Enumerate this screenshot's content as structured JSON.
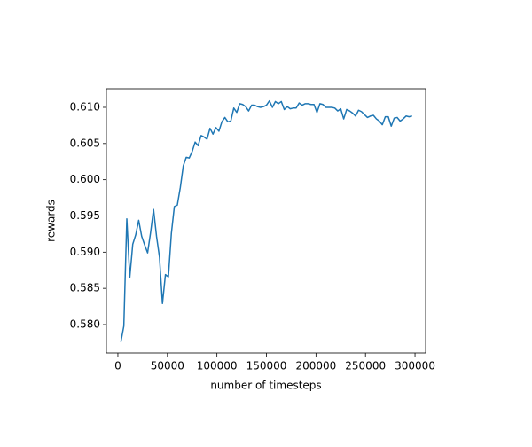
{
  "chart_data": {
    "type": "line",
    "xlabel": "number of timesteps",
    "ylabel": "rewards",
    "x": [
      3000,
      6000,
      9000,
      12000,
      15000,
      18000,
      21000,
      24000,
      27000,
      30000,
      33000,
      36000,
      39000,
      42000,
      45000,
      48000,
      51000,
      54000,
      57000,
      60000,
      63000,
      66000,
      69000,
      72000,
      75000,
      78000,
      81000,
      84000,
      87000,
      90000,
      93000,
      96000,
      99000,
      102000,
      105000,
      108000,
      111000,
      114000,
      117000,
      120000,
      123000,
      126000,
      129000,
      132000,
      135000,
      138000,
      141000,
      144000,
      147000,
      150000,
      153000,
      156000,
      159000,
      162000,
      165000,
      168000,
      171000,
      174000,
      177000,
      180000,
      183000,
      186000,
      189000,
      192000,
      195000,
      198000,
      201000,
      204000,
      207000,
      210000,
      213000,
      216000,
      219000,
      222000,
      225000,
      228000,
      231000,
      234000,
      237000,
      240000,
      243000,
      246000,
      249000,
      252000,
      255000,
      258000,
      261000,
      264000,
      267000,
      270000,
      273000,
      276000,
      279000,
      282000,
      285000,
      288000,
      291000,
      294000,
      297000
    ],
    "series": [
      {
        "color": "#1f77b4",
        "values": [
          0.5776,
          0.5798,
          0.5946,
          0.5865,
          0.5911,
          0.5924,
          0.5944,
          0.5922,
          0.591,
          0.5899,
          0.5927,
          0.5959,
          0.5922,
          0.5893,
          0.5829,
          0.5869,
          0.5866,
          0.5926,
          0.5963,
          0.5965,
          0.5989,
          0.6019,
          0.6031,
          0.603,
          0.6039,
          0.6052,
          0.6047,
          0.6061,
          0.6059,
          0.6056,
          0.6071,
          0.6063,
          0.6072,
          0.6067,
          0.608,
          0.6086,
          0.608,
          0.6081,
          0.6099,
          0.6093,
          0.6105,
          0.6104,
          0.6101,
          0.6095,
          0.6103,
          0.6103,
          0.6101,
          0.61,
          0.6101,
          0.6103,
          0.6109,
          0.61,
          0.6108,
          0.6105,
          0.6108,
          0.6097,
          0.6101,
          0.6098,
          0.6099,
          0.6099,
          0.6106,
          0.6103,
          0.6105,
          0.6105,
          0.6104,
          0.6104,
          0.6093,
          0.6105,
          0.6104,
          0.61,
          0.61,
          0.61,
          0.6099,
          0.6095,
          0.6098,
          0.6084,
          0.6097,
          0.6095,
          0.6092,
          0.6088,
          0.6096,
          0.6094,
          0.609,
          0.6086,
          0.6088,
          0.6089,
          0.6084,
          0.6081,
          0.6076,
          0.6087,
          0.6087,
          0.6074,
          0.6085,
          0.6086,
          0.6081,
          0.6084,
          0.6088,
          0.6087,
          0.6088
        ]
      }
    ],
    "xlim": [
      -11600,
      310700
    ],
    "xticks": [
      0,
      50000,
      100000,
      150000,
      200000,
      250000,
      300000
    ],
    "ylim": [
      0.57608,
      0.61257
    ],
    "yticks": [
      {
        "value": 0.58,
        "label": "0.580"
      },
      0.585,
      {
        "value": 0.59,
        "label": "0.590"
      },
      0.595,
      {
        "value": 0.6,
        "label": "0.600"
      },
      0.605,
      {
        "value": 0.61,
        "label": "0.610"
      }
    ]
  }
}
